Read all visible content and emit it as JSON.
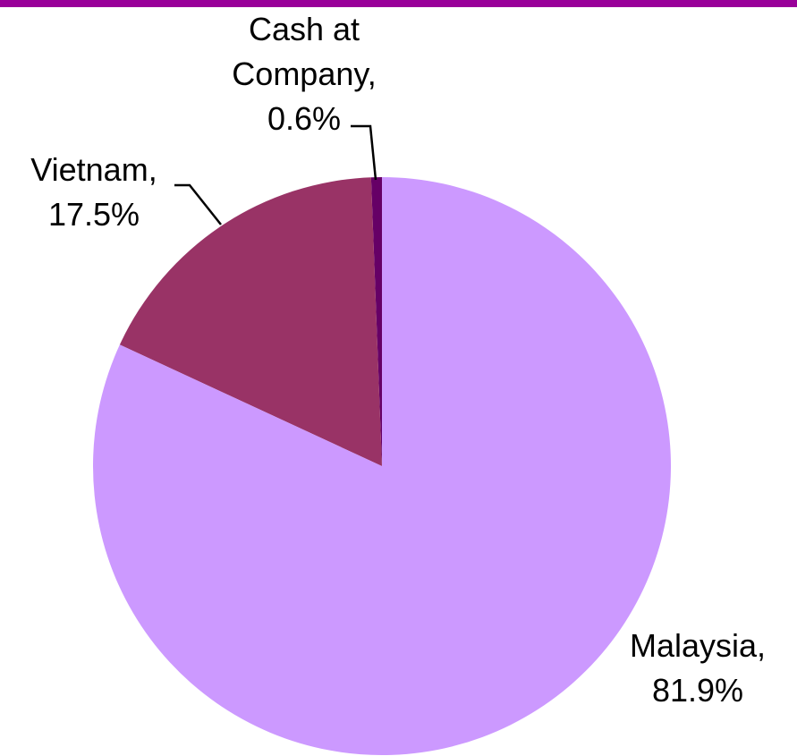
{
  "chart_data": {
    "type": "pie",
    "categories": [
      "Malaysia,",
      "Vietnam,",
      "Cash at Company,"
    ],
    "values": [
      81.9,
      17.5,
      0.6
    ],
    "value_labels": [
      "81.9%",
      "17.5%",
      "0.6%"
    ],
    "colors": [
      "#cc99ff",
      "#993366",
      "#660066"
    ]
  }
}
